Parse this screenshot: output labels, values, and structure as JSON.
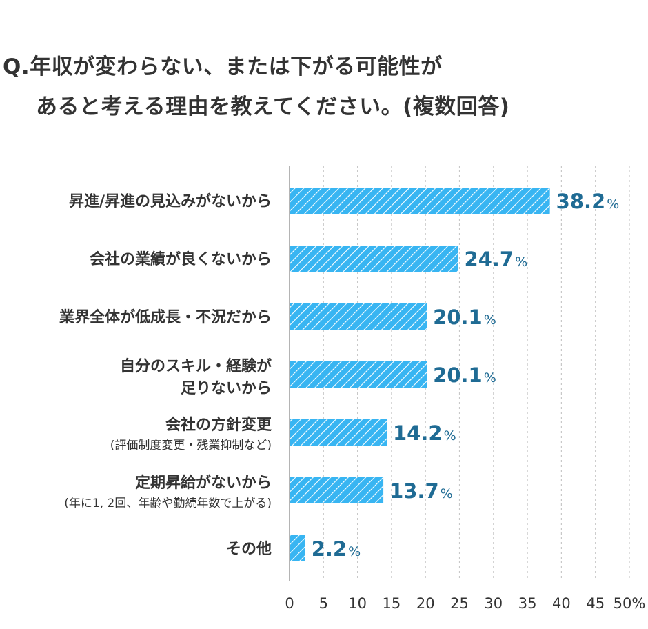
{
  "question": {
    "line1": "Q.年収が変わらない、または下がる可能性が",
    "line2": "あると考える理由を教えてください。(複数回答)"
  },
  "colors": {
    "bar": "#38b5f2",
    "hatch": "#ffffff",
    "value_label": "#1f6b94",
    "grid": "#c8c8c8",
    "axis": "#b4b4b4",
    "text": "#333333"
  },
  "chart_data": {
    "type": "bar",
    "orientation": "horizontal",
    "categories": [
      {
        "line1": "昇進/昇進の見込みがないから",
        "line2": ""
      },
      {
        "line1": "会社の業績が良くないから",
        "line2": ""
      },
      {
        "line1": "業界全体が低成長・不況だから",
        "line2": ""
      },
      {
        "line1": "自分のスキル・経験が",
        "line2": "足りないから"
      },
      {
        "line1": "会社の方針変更",
        "line2": "(評価制度変更・残業抑制など)"
      },
      {
        "line1": "定期昇給がないから",
        "line2": "(年に1, 2回、年齢や勤続年数で上がる)"
      },
      {
        "line1": "その他",
        "line2": ""
      }
    ],
    "values": [
      38.2,
      24.7,
      20.1,
      20.1,
      14.2,
      13.7,
      2.2
    ],
    "value_labels": [
      "38.2",
      "24.7",
      "20.1",
      "20.1",
      "14.2",
      "13.7",
      "2.2"
    ],
    "value_suffix": "%",
    "xlim": [
      0,
      50
    ],
    "ticks": [
      "0",
      "5",
      "10",
      "15",
      "20",
      "25",
      "30",
      "35",
      "40",
      "45",
      "50%"
    ],
    "grid": "vertical dashed",
    "bar_pattern": "diagonal hatch"
  }
}
